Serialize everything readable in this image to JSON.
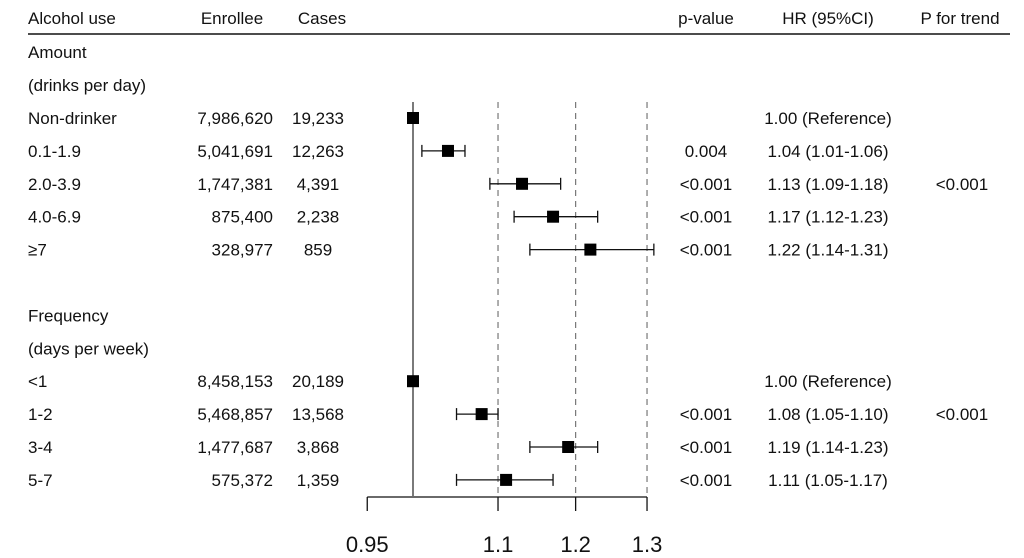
{
  "chart_data": {
    "type": "forest",
    "scale": "log",
    "xlim": [
      0.95,
      1.3
    ],
    "xticks": [
      "0.95",
      "1.1",
      "1.2",
      "1.3"
    ],
    "reference_value": 1.0,
    "dashed_lines": [
      1.1,
      1.2,
      1.3
    ],
    "headers": {
      "label": "Alcohol use",
      "enrollee": "Enrollee",
      "cases": "Cases",
      "pvalue": "p-value",
      "hr": "HR (95%CI)",
      "trend": "P for trend"
    },
    "rows": [
      {
        "label": "Amount"
      },
      {
        "label": "(drinks per day)"
      },
      {
        "label": "Non-drinker",
        "enrollee": "7,986,620",
        "cases": "19,233",
        "hr": 1.0,
        "lo": 1.0,
        "hi": 1.0,
        "pvalue": "",
        "hr_text": "1.00 (Reference)",
        "trend": ""
      },
      {
        "label": "0.1-1.9",
        "enrollee": "5,041,691",
        "cases": "12,263",
        "hr": 1.04,
        "lo": 1.01,
        "hi": 1.06,
        "pvalue": "0.004",
        "hr_text": "1.04 (1.01-1.06)",
        "trend": ""
      },
      {
        "label": "2.0-3.9",
        "enrollee": "1,747,381",
        "cases": "4,391",
        "hr": 1.13,
        "lo": 1.09,
        "hi": 1.18,
        "pvalue": "<0.001",
        "hr_text": "1.13 (1.09-1.18)",
        "trend": "<0.001"
      },
      {
        "label": "4.0-6.9",
        "enrollee": "875,400",
        "cases": "2,238",
        "hr": 1.17,
        "lo": 1.12,
        "hi": 1.23,
        "pvalue": "<0.001",
        "hr_text": "1.17 (1.12-1.23)",
        "trend": ""
      },
      {
        "label": "≥7",
        "enrollee": "328,977",
        "cases": "859",
        "hr": 1.22,
        "lo": 1.14,
        "hi": 1.31,
        "pvalue": "<0.001",
        "hr_text": "1.22 (1.14-1.31)",
        "trend": ""
      },
      {
        "label": ""
      },
      {
        "label": "Frequency"
      },
      {
        "label": "(days per week)"
      },
      {
        "label": "<1",
        "enrollee": "8,458,153",
        "cases": "20,189",
        "hr": 1.0,
        "lo": 1.0,
        "hi": 1.0,
        "pvalue": "",
        "hr_text": "1.00 (Reference)",
        "trend": ""
      },
      {
        "label": "1-2",
        "enrollee": "5,468,857",
        "cases": "13,568",
        "hr": 1.08,
        "lo": 1.05,
        "hi": 1.1,
        "pvalue": "<0.001",
        "hr_text": "1.08 (1.05-1.10)",
        "trend": "<0.001"
      },
      {
        "label": "3-4",
        "enrollee": "1,477,687",
        "cases": "3,868",
        "hr": 1.19,
        "lo": 1.14,
        "hi": 1.23,
        "pvalue": "<0.001",
        "hr_text": "1.19 (1.14-1.23)",
        "trend": ""
      },
      {
        "label": "5-7",
        "enrollee": "575,372",
        "cases": "1,359",
        "hr": 1.11,
        "lo": 1.05,
        "hi": 1.17,
        "pvalue": "<0.001",
        "hr_text": "1.11 (1.05-1.17)",
        "trend": ""
      }
    ]
  }
}
